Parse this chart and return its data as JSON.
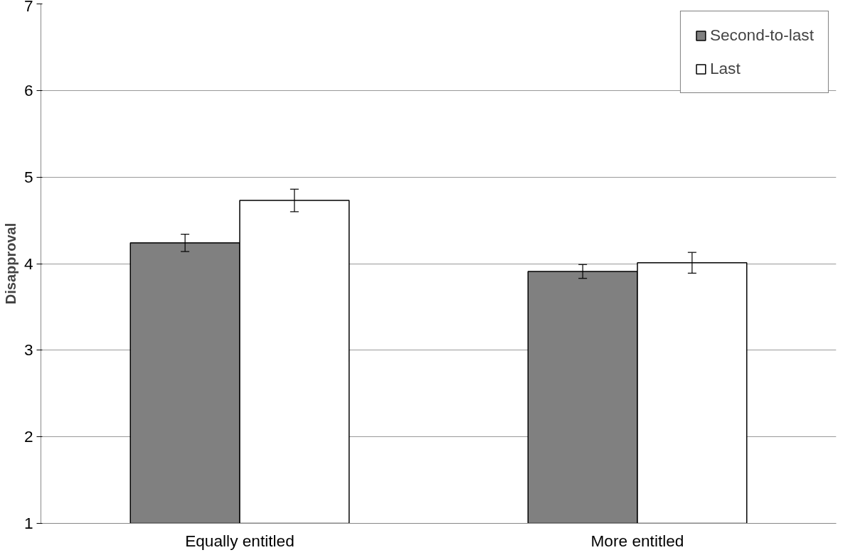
{
  "chart_data": {
    "type": "bar",
    "ylabel": "Disapproval",
    "categories": [
      "Equally entitled",
      "More entitled"
    ],
    "series": [
      {
        "name": "Second-to-last",
        "color": "#808080",
        "values": [
          4.24,
          3.91
        ],
        "errors": [
          0.1,
          0.08
        ]
      },
      {
        "name": "Last",
        "color": "#ffffff",
        "values": [
          4.73,
          4.01
        ],
        "errors": [
          0.13,
          0.12
        ]
      }
    ],
    "ylim": [
      1,
      7
    ],
    "yticks": [
      1,
      2,
      3,
      4,
      5,
      6,
      7
    ],
    "grid": "y",
    "legend": "top right"
  }
}
